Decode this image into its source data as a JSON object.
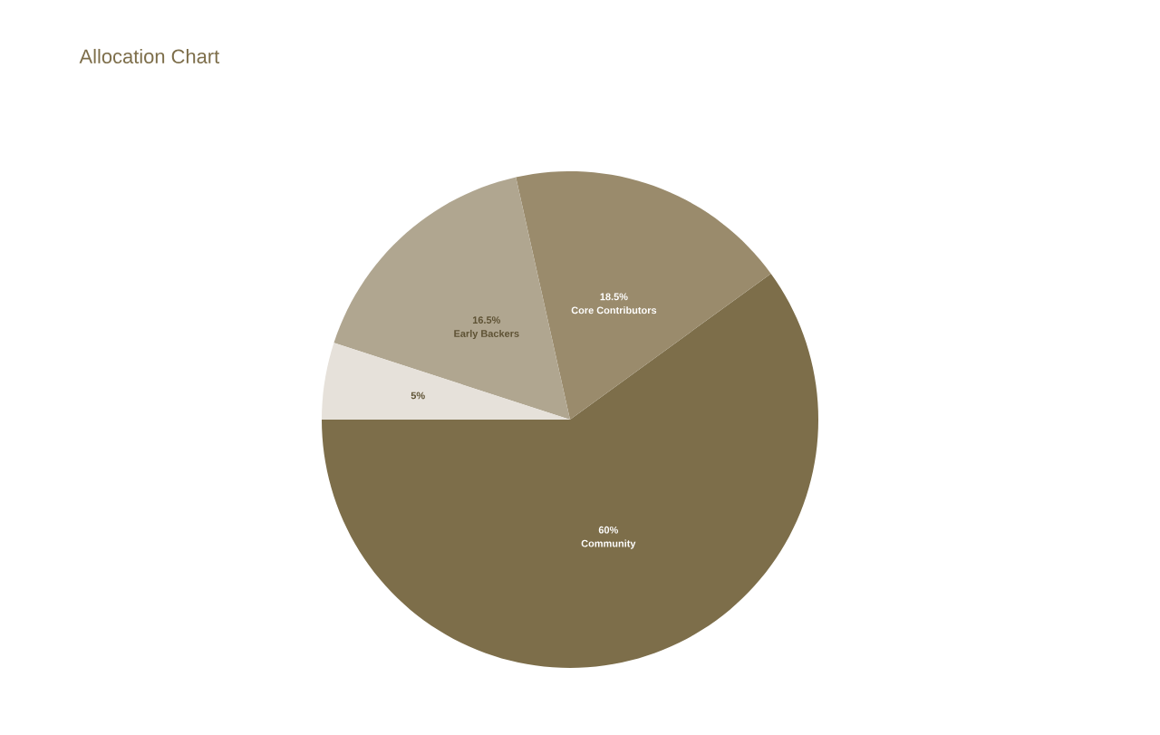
{
  "chart_data": {
    "type": "pie",
    "title": "Allocation Chart",
    "categories": [
      "Community",
      "Core Contributors",
      "Early Backers",
      null
    ],
    "values": [
      60,
      18.5,
      16.5,
      5
    ],
    "value_labels": [
      "60%",
      "18.5%",
      "16.5%",
      "5%"
    ],
    "colors": [
      "#7d6e4a",
      "#9a8b6c",
      "#b0a690",
      "#e6e1da"
    ]
  }
}
